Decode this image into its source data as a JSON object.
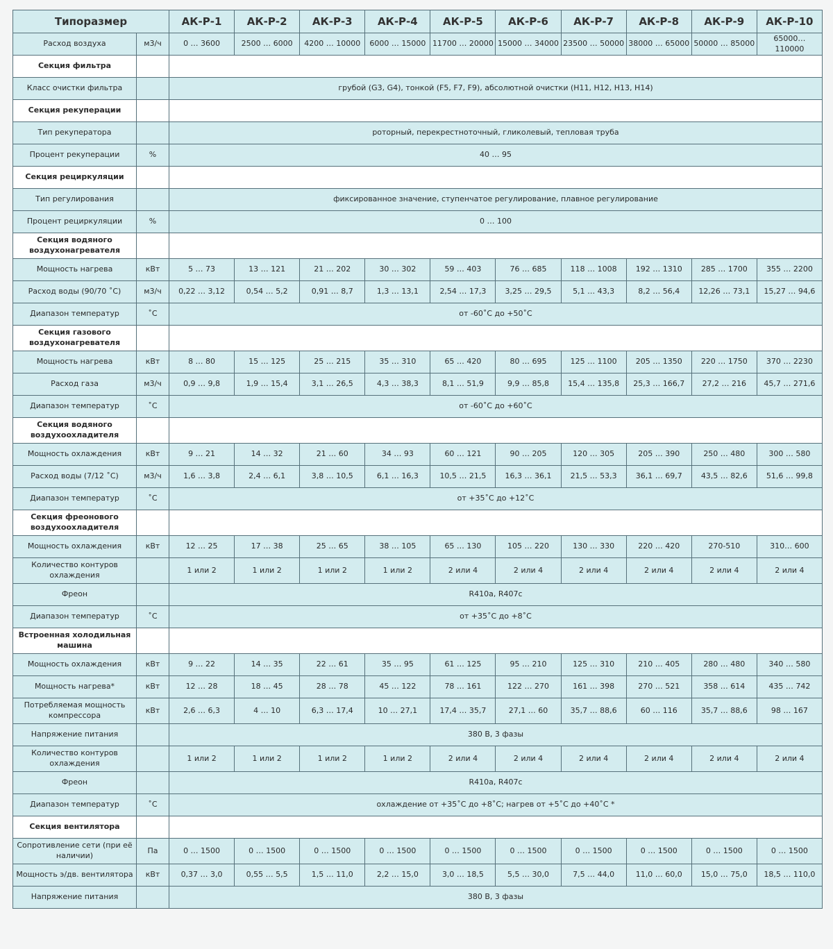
{
  "table": {
    "header": {
      "label": "Типоразмер",
      "models": [
        "АК-Р-1",
        "АК-Р-2",
        "АК-Р-3",
        "АК-Р-4",
        "АК-Р-5",
        "АК-Р-6",
        "АК-Р-7",
        "АК-Р-8",
        "АК-Р-9",
        "АК-Р-10"
      ]
    },
    "rows": [
      {
        "label": "Расход воздуха",
        "unit": "м3/ч",
        "values": [
          "0 … 3600",
          "2500 … 6000",
          "4200 … 10000",
          "6000 … 15000",
          "11700 … 20000",
          "15000 … 34000",
          "23500 … 50000",
          "38000 … 65000",
          "50000 … 85000",
          "65000… 110000"
        ]
      },
      {
        "section": "Секция фильтра"
      },
      {
        "label": "Класс очистки фильтра",
        "value": "грубой (G3, G4), тонкой (F5, F7, F9), абсолютной очистки (H11, H12, H13, H14)"
      },
      {
        "section": "Секция рекуперации"
      },
      {
        "label": "Тип рекуператора",
        "value": "роторный, перекрестноточный, гликолевый, тепловая труба"
      },
      {
        "label": "Процент рекуперации",
        "unit": "%",
        "value": "40 … 95"
      },
      {
        "section": "Секция рециркуляции"
      },
      {
        "label": "Тип регулирования",
        "value": "фиксированное значение, ступенчатое регулирование, плавное регулирование"
      },
      {
        "label": "Процент рециркуляции",
        "unit": "%",
        "value": "0 … 100"
      },
      {
        "section": "Секция водяного воздухонагревателя"
      },
      {
        "label": "Мощность нагрева",
        "unit": "кВт",
        "values": [
          "5 … 73",
          "13 … 121",
          "21 … 202",
          "30 … 302",
          "59 … 403",
          "76 … 685",
          "118 … 1008",
          "192 … 1310",
          "285 … 1700",
          "355 … 2200"
        ]
      },
      {
        "label": "Расход воды (90/70 ˚C)",
        "unit": "м3/ч",
        "values": [
          "0,22 … 3,12",
          "0,54 … 5,2",
          "0,91 … 8,7",
          "1,3 … 13,1",
          "2,54 … 17,3",
          "3,25 … 29,5",
          "5,1 … 43,3",
          "8,2 … 56,4",
          "12,26 … 73,1",
          "15,27 … 94,6"
        ]
      },
      {
        "label": "Диапазон температур",
        "unit": "˚C",
        "value": "от -60˚C до +50˚C"
      },
      {
        "section": "Секция газового воздухонагревателя"
      },
      {
        "label": "Мощность нагрева",
        "unit": "кВт",
        "values": [
          "8 … 80",
          "15 … 125",
          "25 … 215",
          "35 … 310",
          "65 … 420",
          "80 … 695",
          "125 … 1100",
          "205 … 1350",
          "220 … 1750",
          "370 … 2230"
        ]
      },
      {
        "label": "Расход газа",
        "unit": "м3/ч",
        "values": [
          "0,9 … 9,8",
          "1,9 … 15,4",
          "3,1 … 26,5",
          "4,3 … 38,3",
          "8,1 … 51,9",
          "9,9 … 85,8",
          "15,4 … 135,8",
          "25,3 … 166,7",
          "27,2 … 216",
          "45,7 … 271,6"
        ]
      },
      {
        "label": "Диапазон температур",
        "unit": "˚C",
        "value": "от -60˚C до +60˚C"
      },
      {
        "section": "Секция водяного воздухоохладителя"
      },
      {
        "label": "Мощность охлаждения",
        "unit": "кВт",
        "values": [
          "9 … 21",
          "14 … 32",
          "21 … 60",
          "34 … 93",
          "60 … 121",
          "90 … 205",
          "120 … 305",
          "205 … 390",
          "250 … 480",
          "300 … 580"
        ]
      },
      {
        "label": "Расход воды (7/12 ˚C)",
        "unit": "м3/ч",
        "values": [
          "1,6 … 3,8",
          "2,4 … 6,1",
          "3,8 … 10,5",
          "6,1 … 16,3",
          "10,5 … 21,5",
          "16,3 … 36,1",
          "21,5 … 53,3",
          "36,1 … 69,7",
          "43,5 … 82,6",
          "51,6 … 99,8"
        ]
      },
      {
        "label": "Диапазон температур",
        "unit": "˚C",
        "value": "от +35˚C до +12˚C"
      },
      {
        "section": "Секция фреонового воздухоохладителя"
      },
      {
        "label": "Мощность охлаждения",
        "unit": "кВт",
        "values": [
          "12 … 25",
          "17 … 38",
          "25 … 65",
          "38 … 105",
          "65 … 130",
          "105 … 220",
          "130 … 330",
          "220 … 420",
          "270-510",
          "310… 600"
        ]
      },
      {
        "label": "Количество контуров охлаждения",
        "values": [
          "1 или 2",
          "1 или 2",
          "1 или 2",
          "1 или 2",
          "2 или 4",
          "2 или 4",
          "2 или 4",
          "2 или 4",
          "2 или 4",
          "2 или 4"
        ]
      },
      {
        "label": "Фреон",
        "value": "R410a, R407c"
      },
      {
        "label": "Диапазон температур",
        "unit": "˚C",
        "value": "от +35˚C до +8˚C"
      },
      {
        "section": "Встроенная холодильная машина"
      },
      {
        "label": "Мощность охлаждения",
        "unit": "кВт",
        "values": [
          "9 … 22",
          "14 … 35",
          "22 … 61",
          "35 … 95",
          "61 … 125",
          "95 … 210",
          "125 … 310",
          "210 … 405",
          "280 … 480",
          "340 … 580"
        ]
      },
      {
        "label": "Мощность нагрева*",
        "unit": "кВт",
        "values": [
          "12 … 28",
          "18 … 45",
          "28 … 78",
          "45 … 122",
          "78 … 161",
          "122 … 270",
          "161 … 398",
          "270 … 521",
          "358 … 614",
          "435 … 742"
        ]
      },
      {
        "label": "Потребляемая мощность компрессора",
        "unit": "кВт",
        "values": [
          "2,6 … 6,3",
          "4 … 10",
          "6,3 … 17,4",
          "10 … 27,1",
          "17,4 … 35,7",
          "27,1 … 60",
          "35,7 … 88,6",
          "60 … 116",
          "35,7 … 88,6",
          "98 … 167"
        ]
      },
      {
        "label": "Напряжение питания",
        "value": "380 В, 3 фазы"
      },
      {
        "label": "Количество контуров охлаждения",
        "values": [
          "1 или 2",
          "1 или 2",
          "1 или 2",
          "1 или 2",
          "2 или 4",
          "2 или 4",
          "2 или 4",
          "2 или 4",
          "2 или 4",
          "2 или 4"
        ]
      },
      {
        "label": "Фреон",
        "value": "R410a, R407c"
      },
      {
        "label": "Диапазон температур",
        "unit": "˚C",
        "value": "охлаждение от +35˚C до +8˚C; нагрев от +5˚C до +40˚C *"
      },
      {
        "section": "Секция вентилятора"
      },
      {
        "label": "Сопротивление сети (при её наличии)",
        "unit": "Па",
        "values": [
          "0 … 1500",
          "0 … 1500",
          "0 … 1500",
          "0 … 1500",
          "0 … 1500",
          "0 … 1500",
          "0 … 1500",
          "0 … 1500",
          "0 … 1500",
          "0 … 1500"
        ]
      },
      {
        "label": "Мощность э/дв. вентилятора",
        "unit": "кВт",
        "values": [
          "0,37 … 3,0",
          "0,55 … 5,5",
          "1,5 … 11,0",
          "2,2 … 15,0",
          "3,0 … 18,5",
          "5,5 … 30,0",
          "7,5 … 44,0",
          "11,0 … 60,0",
          "15,0 … 75,0",
          "18,5 … 110,0"
        ]
      },
      {
        "label": "Напряжение питания",
        "value": "380 В, 3 фазы"
      }
    ]
  }
}
